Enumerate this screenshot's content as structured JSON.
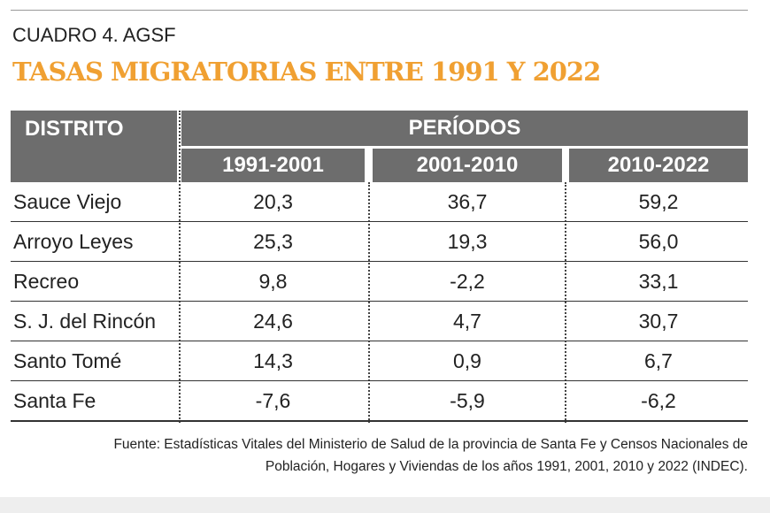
{
  "header": {
    "label": "CUADRO 4. AGSF",
    "title": "TASAS MIGRATORIAS ENTRE 1991 Y 2022"
  },
  "table": {
    "district_header": "DISTRITO",
    "period_header": "PERÍODOS",
    "columns": [
      "1991-2001",
      "2001-2010",
      "2010-2022"
    ],
    "rows": [
      [
        "Sauce Viejo",
        "20,3",
        "36,7",
        "59,2"
      ],
      [
        "Arroyo Leyes",
        "25,3",
        "19,3",
        "56,0"
      ],
      [
        "Recreo",
        "9,8",
        "-2,2",
        "33,1"
      ],
      [
        "S. J. del Rincón",
        "24,6",
        "4,7",
        "30,7"
      ],
      [
        "Santo Tomé",
        "14,3",
        "0,9",
        "6,7"
      ],
      [
        "Santa Fe",
        "-7,6",
        "-5,9",
        "-6,2"
      ]
    ]
  },
  "footer": {
    "source_lines": [
      "Fuente: Estadísticas Vitales del Ministerio de Salud de la provincia de Santa Fe y Censos Nacionales de",
      "Población, Hogares y Viviendas de los años 1991, 2001, 2010 y 2022 (INDEC)."
    ]
  }
}
